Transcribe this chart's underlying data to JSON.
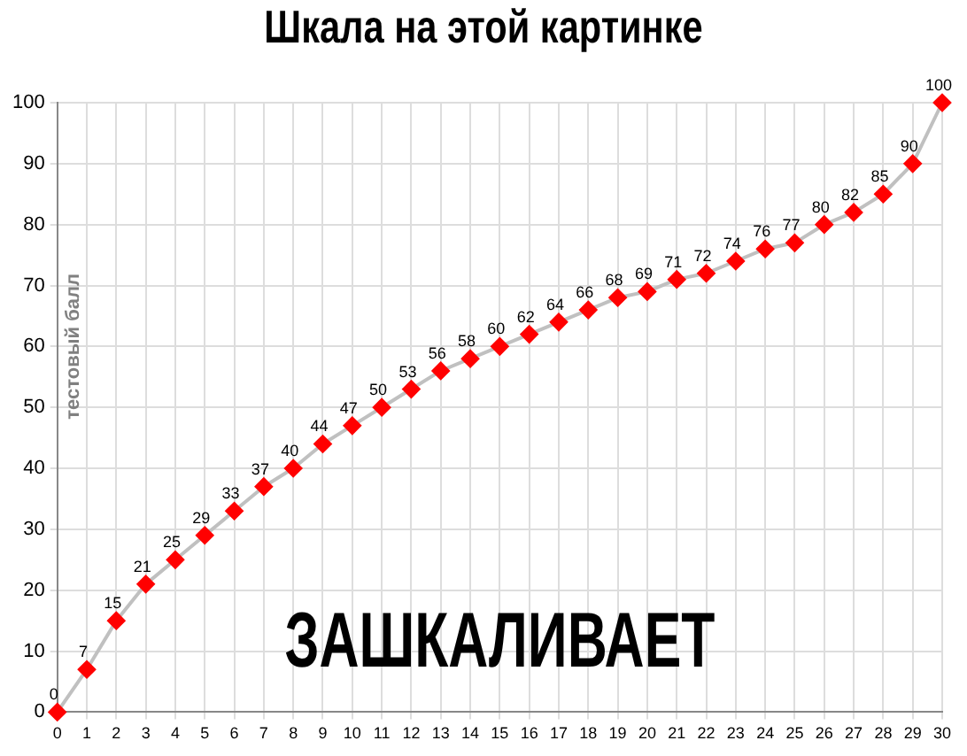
{
  "chart_data": {
    "type": "line",
    "title": "Шкала на этой картинке",
    "ylabel": "тестовый балл",
    "x": [
      0,
      1,
      2,
      3,
      4,
      5,
      6,
      7,
      8,
      9,
      10,
      11,
      12,
      13,
      14,
      15,
      16,
      17,
      18,
      19,
      20,
      21,
      22,
      23,
      24,
      25,
      26,
      27,
      28,
      29,
      30
    ],
    "series": [
      {
        "color": "#ff0000",
        "values": [
          0,
          7,
          15,
          21,
          25,
          29,
          33,
          37,
          40,
          44,
          47,
          50,
          53,
          56,
          58,
          60,
          62,
          64,
          66,
          68,
          69,
          71,
          72,
          74,
          76,
          77,
          80,
          82,
          85,
          90,
          100
        ]
      }
    ],
    "xlim": [
      0,
      30
    ],
    "xticks": [
      0,
      1,
      2,
      3,
      4,
      5,
      6,
      7,
      8,
      9,
      10,
      11,
      12,
      13,
      14,
      15,
      16,
      17,
      18,
      19,
      20,
      21,
      22,
      23,
      24,
      25,
      26,
      27,
      28,
      29,
      30
    ],
    "ylim": [
      0,
      100
    ],
    "yticks": [
      0,
      10,
      20,
      30,
      40,
      50,
      60,
      70,
      80,
      90,
      100
    ],
    "grid": true,
    "legend": false,
    "marker": "diamond",
    "line_style": "solid",
    "data_labels": true,
    "annotations": [
      "ЗАШКАЛИВАЕТ"
    ]
  }
}
